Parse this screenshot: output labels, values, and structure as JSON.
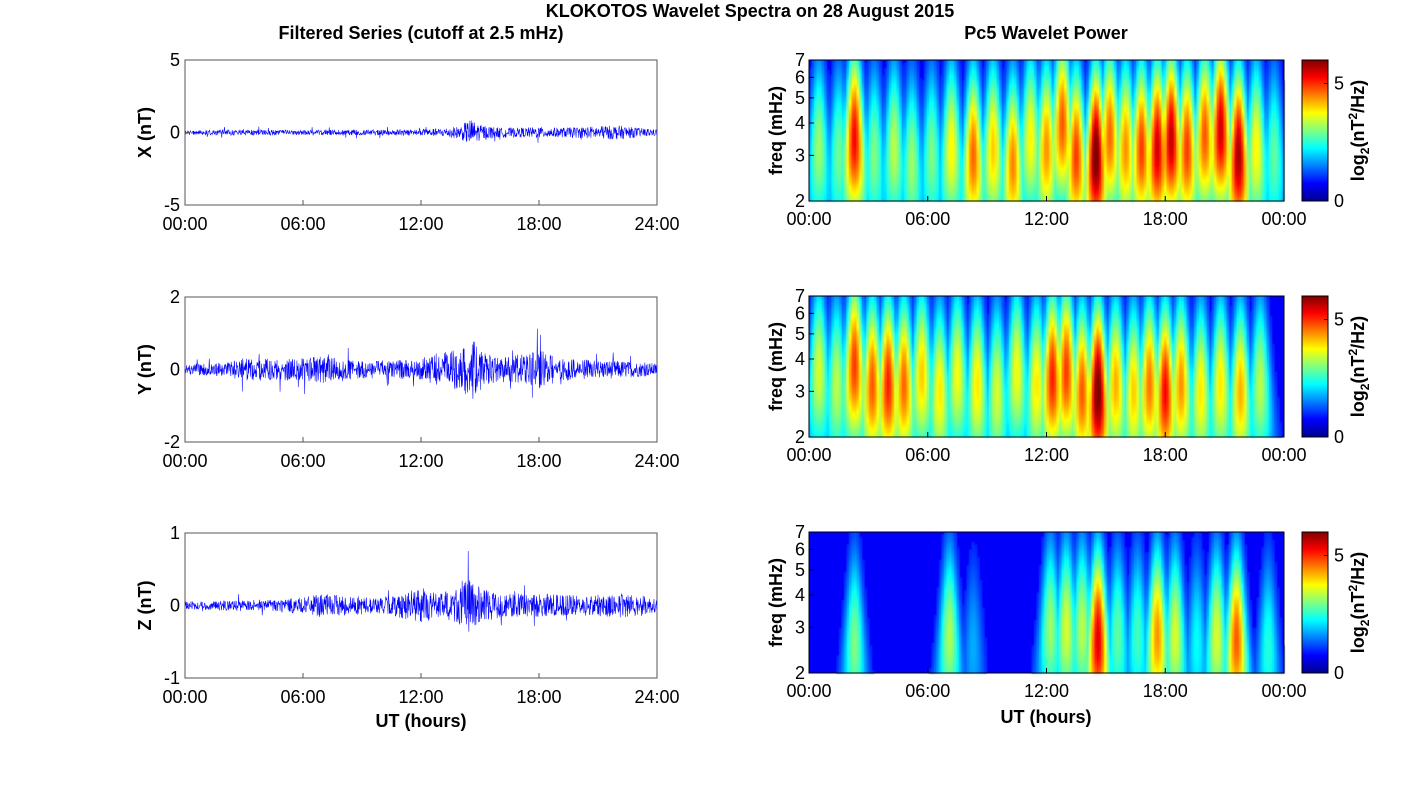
{
  "figure": {
    "title": "KLOKOTOS Wavelet Spectra on 28 August 2015",
    "left_column_title": "Filtered Series (cutoff at 2.5 mHz)",
    "right_column_title": "Pc5 Wavelet Power",
    "xlabel": "UT (hours)"
  },
  "chart_data": [
    {
      "type": "line",
      "id": "x-series",
      "ylabel": "X (nT)",
      "ylim": [
        -5,
        5
      ],
      "yticks": [
        "5",
        "0",
        "-5"
      ],
      "xlim": [
        0,
        24
      ],
      "xticks": [
        "00:00",
        "06:00",
        "12:00",
        "18:00",
        "24:00"
      ],
      "color": "#0000ff",
      "envelope": {
        "x": [
          0,
          2,
          4,
          6,
          8,
          10,
          12,
          13,
          14,
          14.5,
          15,
          16,
          17,
          18,
          19,
          20,
          21,
          22,
          23,
          24
        ],
        "amplitude": [
          0.25,
          0.35,
          0.35,
          0.3,
          0.35,
          0.35,
          0.4,
          0.5,
          0.8,
          1.7,
          1.0,
          0.6,
          0.6,
          0.7,
          0.6,
          0.7,
          0.8,
          0.9,
          0.6,
          0.4
        ]
      }
    },
    {
      "type": "line",
      "id": "y-series",
      "ylabel": "Y (nT)",
      "ylim": [
        -2,
        2
      ],
      "yticks": [
        "2",
        "0",
        "-2"
      ],
      "xlim": [
        0,
        24
      ],
      "xticks": [
        "00:00",
        "06:00",
        "12:00",
        "18:00",
        "24:00"
      ],
      "color": "#0000ff",
      "envelope": {
        "x": [
          0,
          2,
          3,
          4,
          6,
          7,
          8,
          10,
          12,
          13,
          14,
          14.6,
          15,
          16,
          17,
          18,
          19,
          20,
          22,
          24
        ],
        "amplitude": [
          0.25,
          0.35,
          0.6,
          0.55,
          0.55,
          0.7,
          0.5,
          0.45,
          0.5,
          0.9,
          1.0,
          1.6,
          0.9,
          0.6,
          0.8,
          1.0,
          0.6,
          0.5,
          0.45,
          0.3
        ]
      }
    },
    {
      "type": "line",
      "id": "z-series",
      "ylabel": "Z (nT)",
      "ylim": [
        -1,
        1
      ],
      "yticks": [
        "1",
        "0",
        "-1"
      ],
      "xlim": [
        0,
        24
      ],
      "xticks": [
        "00:00",
        "06:00",
        "12:00",
        "18:00",
        "24:00"
      ],
      "color": "#0000ff",
      "envelope": {
        "x": [
          0,
          2,
          4,
          6,
          7,
          8,
          10,
          12,
          13,
          14,
          14.5,
          15,
          16,
          17,
          18,
          20,
          22,
          23,
          24
        ],
        "amplitude": [
          0.1,
          0.13,
          0.15,
          0.2,
          0.3,
          0.25,
          0.2,
          0.45,
          0.3,
          0.5,
          0.7,
          0.45,
          0.3,
          0.3,
          0.3,
          0.25,
          0.3,
          0.3,
          0.15
        ]
      }
    },
    {
      "type": "heatmap",
      "id": "x-wavelet",
      "ylabel": "freq (mHz)",
      "ylim": [
        2,
        7
      ],
      "yscale": "log",
      "yticks": [
        "2",
        "3",
        "4",
        "5",
        "6",
        "7"
      ],
      "xlim": [
        0,
        24
      ],
      "xticks": [
        "00:00",
        "06:00",
        "12:00",
        "18:00",
        "00:00"
      ],
      "colorbar": {
        "label_main": "log",
        "label_sub": "2",
        "label_rest": "(nT",
        "label_sup": "2",
        "label_end": "/Hz)",
        "range": [
          0,
          6
        ],
        "ticks": [
          "5",
          "0"
        ]
      },
      "events": [
        {
          "t": 0.5,
          "f": 3.2,
          "p": 2.8
        },
        {
          "t": 1.5,
          "f": 3.0,
          "p": 2.5
        },
        {
          "t": 2.3,
          "f": 3.5,
          "p": 5.2
        },
        {
          "t": 3.3,
          "f": 3.0,
          "p": 2.6
        },
        {
          "t": 4.3,
          "f": 3.2,
          "p": 3.0
        },
        {
          "t": 5.2,
          "f": 2.8,
          "p": 2.8
        },
        {
          "t": 6.2,
          "f": 3.0,
          "p": 2.6
        },
        {
          "t": 7.2,
          "f": 3.2,
          "p": 3.5
        },
        {
          "t": 8.3,
          "f": 3.0,
          "p": 4.5
        },
        {
          "t": 9.3,
          "f": 3.2,
          "p": 3.8
        },
        {
          "t": 10.3,
          "f": 2.8,
          "p": 4.3
        },
        {
          "t": 11.2,
          "f": 3.5,
          "p": 3.5
        },
        {
          "t": 12.0,
          "f": 3.2,
          "p": 4.2
        },
        {
          "t": 12.8,
          "f": 4.0,
          "p": 4.6
        },
        {
          "t": 13.5,
          "f": 3.0,
          "p": 4.8
        },
        {
          "t": 14.5,
          "f": 3.0,
          "p": 6.2
        },
        {
          "t": 15.2,
          "f": 3.6,
          "p": 4.5
        },
        {
          "t": 16.0,
          "f": 3.2,
          "p": 4.2
        },
        {
          "t": 16.8,
          "f": 3.2,
          "p": 4.8
        },
        {
          "t": 17.6,
          "f": 3.2,
          "p": 5.5
        },
        {
          "t": 18.3,
          "f": 3.5,
          "p": 5.6
        },
        {
          "t": 19.1,
          "f": 3.2,
          "p": 4.8
        },
        {
          "t": 20.0,
          "f": 3.6,
          "p": 4.6
        },
        {
          "t": 20.8,
          "f": 3.8,
          "p": 5.5
        },
        {
          "t": 21.7,
          "f": 3.0,
          "p": 5.8
        },
        {
          "t": 22.6,
          "f": 3.2,
          "p": 3.5
        },
        {
          "t": 23.5,
          "f": 3.0,
          "p": 2.4
        }
      ]
    },
    {
      "type": "heatmap",
      "id": "y-wavelet",
      "ylabel": "freq (mHz)",
      "ylim": [
        2,
        7
      ],
      "yscale": "log",
      "yticks": [
        "2",
        "3",
        "4",
        "5",
        "6",
        "7"
      ],
      "xlim": [
        0,
        24
      ],
      "xticks": [
        "00:00",
        "06:00",
        "12:00",
        "18:00",
        "00:00"
      ],
      "colorbar": {
        "label_main": "log",
        "label_sub": "2",
        "label_rest": "(nT",
        "label_sup": "2",
        "label_end": "/Hz)",
        "range": [
          0,
          6
        ],
        "ticks": [
          "5",
          "0"
        ]
      },
      "events": [
        {
          "t": 0.5,
          "f": 3.6,
          "p": 3.2
        },
        {
          "t": 1.4,
          "f": 3.2,
          "p": 3.0
        },
        {
          "t": 2.3,
          "f": 3.8,
          "p": 4.8
        },
        {
          "t": 3.2,
          "f": 3.2,
          "p": 4.6
        },
        {
          "t": 4.0,
          "f": 3.2,
          "p": 5.0
        },
        {
          "t": 4.8,
          "f": 3.2,
          "p": 4.5
        },
        {
          "t": 5.7,
          "f": 3.5,
          "p": 3.8
        },
        {
          "t": 6.6,
          "f": 3.0,
          "p": 3.6
        },
        {
          "t": 7.5,
          "f": 3.5,
          "p": 3.4
        },
        {
          "t": 8.5,
          "f": 3.2,
          "p": 3.6
        },
        {
          "t": 9.5,
          "f": 3.0,
          "p": 3.2
        },
        {
          "t": 10.5,
          "f": 3.6,
          "p": 3.4
        },
        {
          "t": 11.5,
          "f": 3.2,
          "p": 3.6
        },
        {
          "t": 12.3,
          "f": 3.4,
          "p": 5.0
        },
        {
          "t": 13.0,
          "f": 3.6,
          "p": 4.8
        },
        {
          "t": 13.8,
          "f": 3.0,
          "p": 4.6
        },
        {
          "t": 14.6,
          "f": 3.0,
          "p": 6.2
        },
        {
          "t": 15.5,
          "f": 3.2,
          "p": 4.0
        },
        {
          "t": 16.4,
          "f": 3.0,
          "p": 3.8
        },
        {
          "t": 17.2,
          "f": 3.2,
          "p": 4.4
        },
        {
          "t": 18.0,
          "f": 3.0,
          "p": 5.2
        },
        {
          "t": 18.8,
          "f": 3.2,
          "p": 4.2
        },
        {
          "t": 19.8,
          "f": 3.0,
          "p": 3.6
        },
        {
          "t": 20.8,
          "f": 3.2,
          "p": 3.6
        },
        {
          "t": 21.8,
          "f": 3.0,
          "p": 4.0
        },
        {
          "t": 22.8,
          "f": 3.2,
          "p": 3.0
        }
      ]
    },
    {
      "type": "heatmap",
      "id": "z-wavelet",
      "ylabel": "freq (mHz)",
      "ylim": [
        2,
        7
      ],
      "yscale": "log",
      "yticks": [
        "2",
        "3",
        "4",
        "5",
        "6",
        "7"
      ],
      "xlim": [
        0,
        24
      ],
      "xticks": [
        "00:00",
        "06:00",
        "12:00",
        "18:00",
        "00:00"
      ],
      "colorbar": {
        "label_main": "log",
        "label_sub": "2",
        "label_rest": "(nT",
        "label_sup": "2",
        "label_end": "/Hz)",
        "range": [
          0,
          6
        ],
        "ticks": [
          "5",
          "0"
        ]
      },
      "events": [
        {
          "t": 2.3,
          "f": 2.6,
          "p": 2.6
        },
        {
          "t": 7.1,
          "f": 2.8,
          "p": 2.9
        },
        {
          "t": 8.3,
          "f": 2.5,
          "p": 1.2
        },
        {
          "t": 12.2,
          "f": 3.0,
          "p": 2.8
        },
        {
          "t": 13.0,
          "f": 3.0,
          "p": 3.2
        },
        {
          "t": 13.8,
          "f": 3.0,
          "p": 3.0
        },
        {
          "t": 14.6,
          "f": 2.7,
          "p": 5.4
        },
        {
          "t": 15.6,
          "f": 2.8,
          "p": 2.4
        },
        {
          "t": 16.6,
          "f": 2.8,
          "p": 2.2
        },
        {
          "t": 17.6,
          "f": 2.8,
          "p": 4.2
        },
        {
          "t": 18.5,
          "f": 2.8,
          "p": 3.2
        },
        {
          "t": 19.6,
          "f": 2.6,
          "p": 1.8
        },
        {
          "t": 20.6,
          "f": 2.8,
          "p": 3.2
        },
        {
          "t": 21.6,
          "f": 2.7,
          "p": 4.6
        },
        {
          "t": 23.2,
          "f": 2.5,
          "p": 2.0
        }
      ]
    }
  ]
}
